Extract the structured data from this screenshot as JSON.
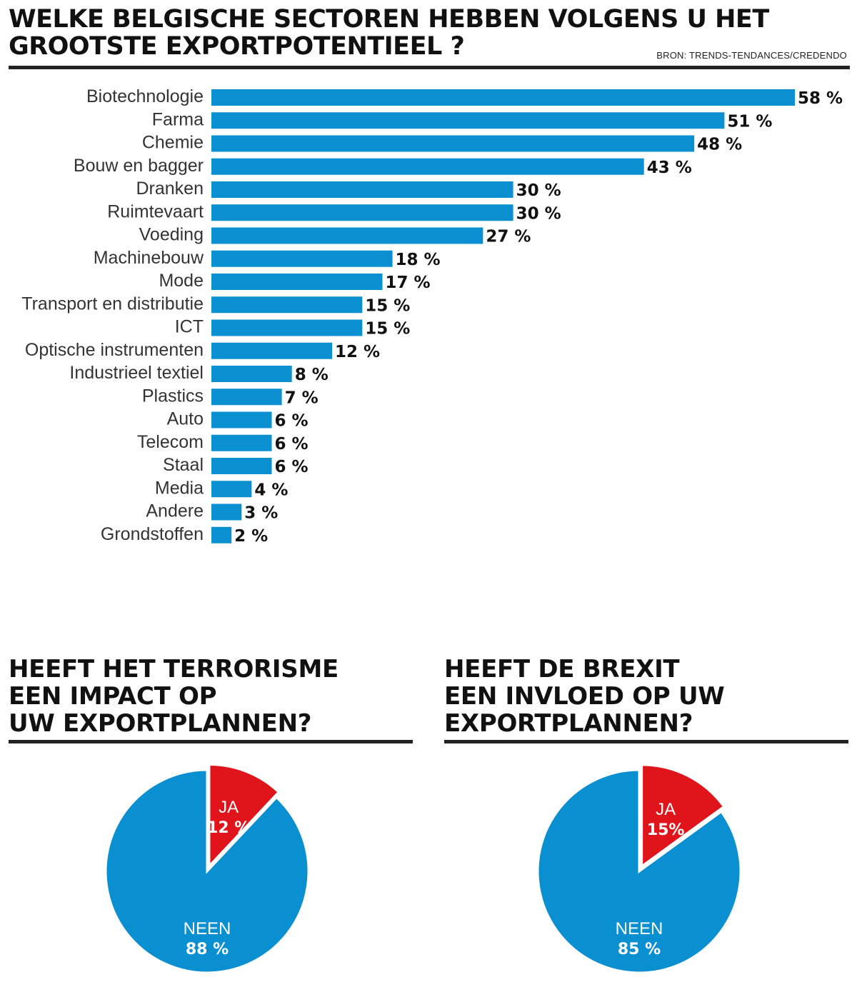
{
  "header": {
    "title_line1": "WELKE BELGISCHE SECTOREN HEBBEN VOLGENS U HET",
    "title_line2": "GROOTSTE EXPORTPOTENTIEEL ?",
    "source": "BRON: TRENDS-TENDANCES/CREDENDO"
  },
  "colors": {
    "bar": "#0a8fd0",
    "pie_main": "#0a8fd0",
    "pie_accent": "#e0141b"
  },
  "chart_data": [
    {
      "type": "bar",
      "orientation": "horizontal",
      "title": "WELKE BELGISCHE SECTOREN HEBBEN VOLGENS U HET GROOTSTE EXPORTPOTENTIEEL ?",
      "categories": [
        "Biotechnologie",
        "Farma",
        "Chemie",
        "Bouw en bagger",
        "Dranken",
        "Ruimtevaart",
        "Voeding",
        "Machinebouw",
        "Mode",
        "Transport en distributie",
        "ICT",
        "Optische instrumenten",
        "Industrieel textiel",
        "Plastics",
        "Auto",
        "Telecom",
        "Staal",
        "Media",
        "Andere",
        "Grondstoffen"
      ],
      "values": [
        58,
        51,
        48,
        43,
        30,
        30,
        27,
        18,
        17,
        15,
        15,
        12,
        8,
        7,
        6,
        6,
        6,
        4,
        3,
        2
      ],
      "value_labels": [
        "58 %",
        "51 %",
        "48 %",
        "43 %",
        "30 %",
        "30 %",
        "27 %",
        "18 %",
        "17 %",
        "15 %",
        "15 %",
        "12 %",
        "8 %",
        "7 %",
        "6 %",
        "6 %",
        "6 %",
        "4 %",
        "3 %",
        "2 %"
      ],
      "xlim": [
        0,
        58
      ],
      "grid": false
    },
    {
      "type": "pie",
      "title_lines": [
        "HEEFT HET TERRORISME",
        "EEN IMPACT OP",
        "UW EXPORTPLANNEN?"
      ],
      "slices": [
        {
          "name": "JA",
          "value": 12,
          "label": "12 %",
          "color": "#e0141b"
        },
        {
          "name": "NEEN",
          "value": 88,
          "label": "88 %",
          "color": "#0a8fd0"
        }
      ]
    },
    {
      "type": "pie",
      "title_lines": [
        "HEEFT DE BREXIT",
        "EEN INVLOED OP UW",
        "EXPORTPLANNEN?"
      ],
      "slices": [
        {
          "name": "JA",
          "value": 15,
          "label": "15%",
          "color": "#e0141b"
        },
        {
          "name": "NEEN",
          "value": 85,
          "label": "85 %",
          "color": "#0a8fd0"
        }
      ]
    }
  ]
}
